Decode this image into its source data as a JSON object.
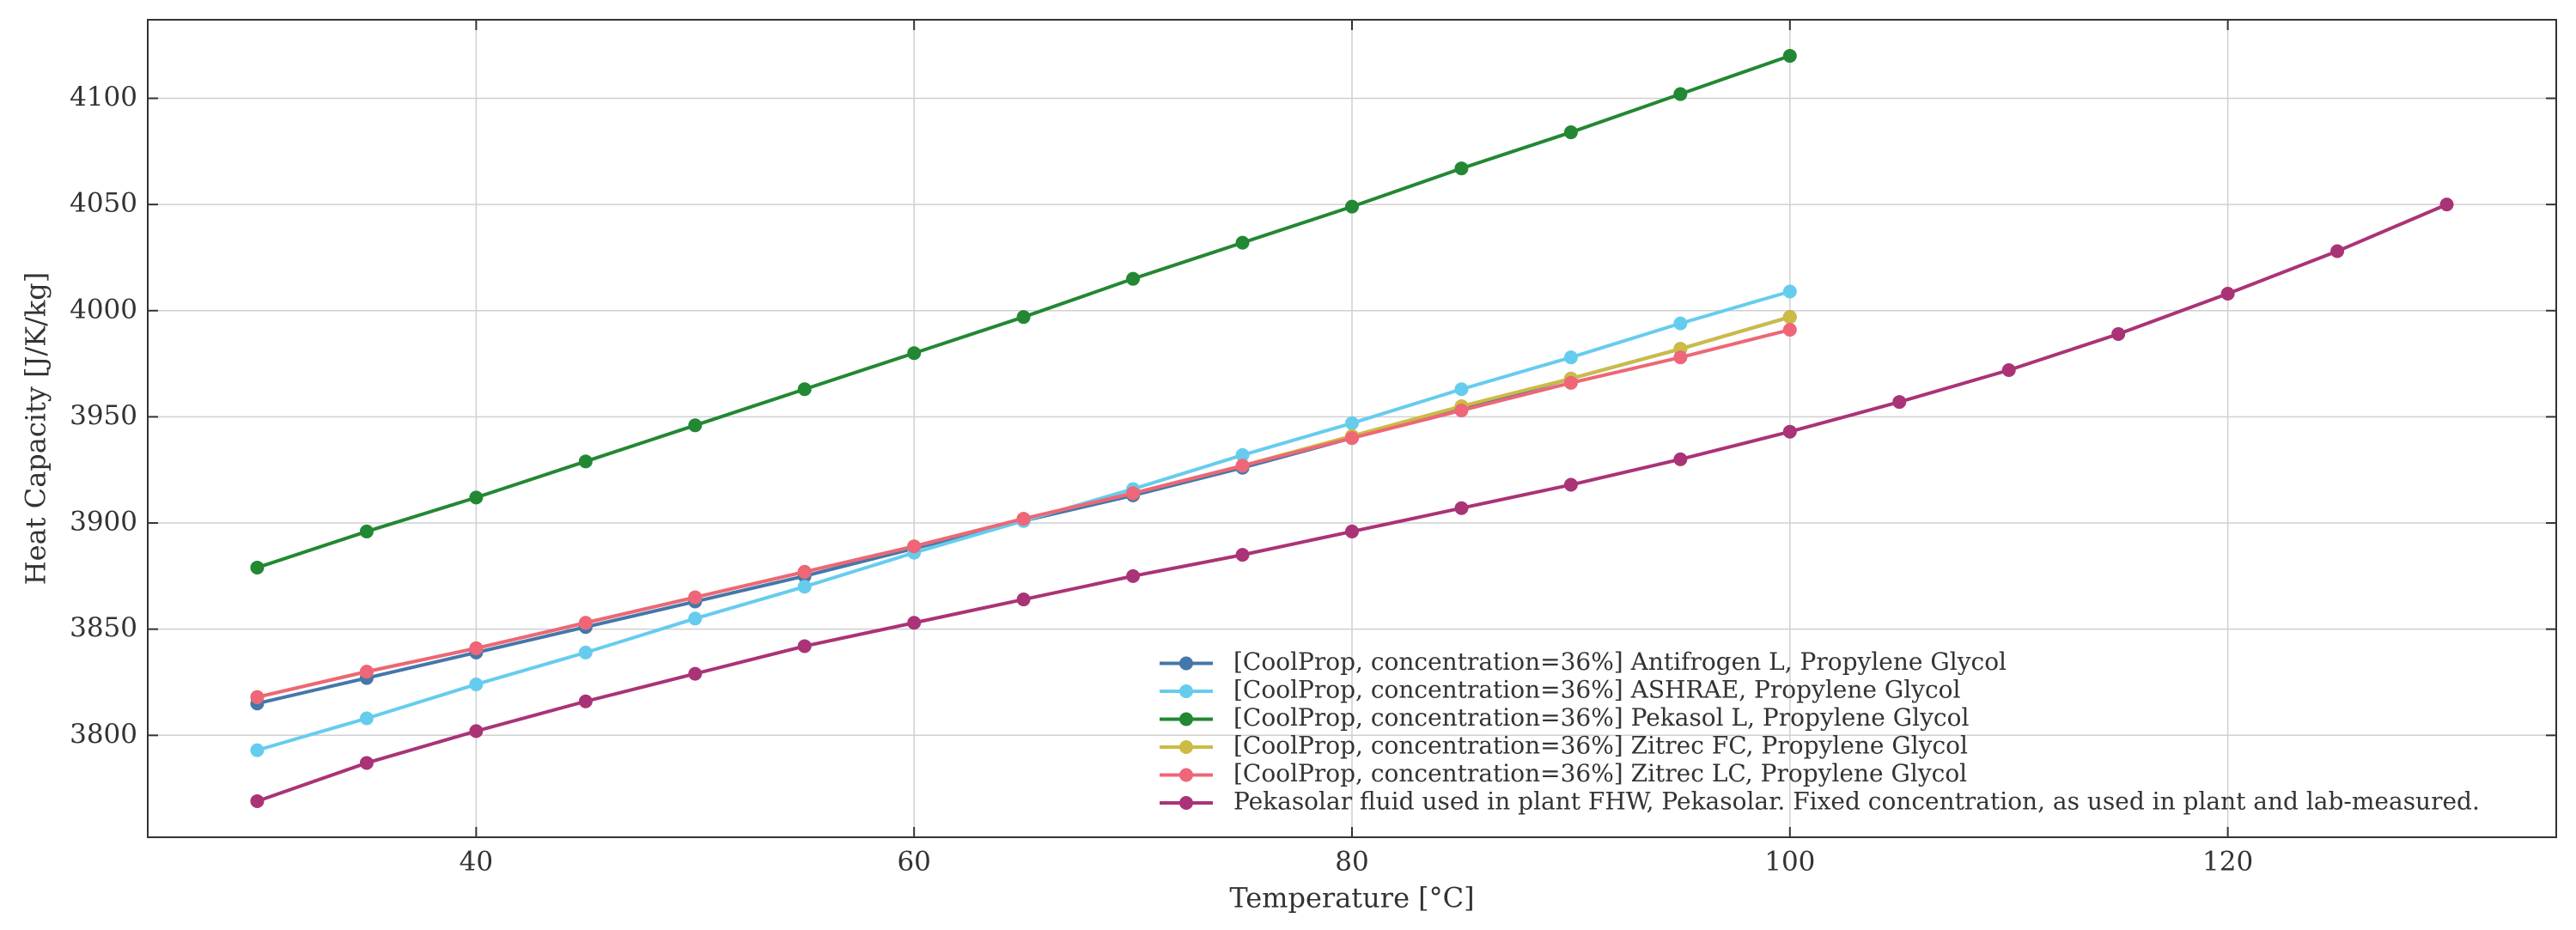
{
  "chart_data": {
    "type": "line",
    "x_label": "Temperature [°C]",
    "y_label": "Heat Capacity [J/K/kg]",
    "xlim": [
      25,
      135
    ],
    "xticks": [
      40,
      60,
      80,
      100,
      120
    ],
    "ylim": [
      3752,
      4137
    ],
    "yticks": [
      3800,
      3850,
      3900,
      3950,
      4000,
      4050,
      4100
    ],
    "grid": true,
    "legend": "lower right",
    "series": [
      {
        "name": "[CoolProp, concentration=36%] Antifrogen L, Propylene Glycol",
        "color": "#4477AA",
        "x": [
          30,
          35,
          40,
          45,
          50,
          55,
          60,
          65,
          70,
          75,
          80,
          85,
          90,
          95,
          100
        ],
        "values": [
          3815,
          3827,
          3839,
          3851,
          3863,
          3875,
          3888,
          3901,
          3913,
          3926,
          3940,
          3954,
          3968,
          3982,
          3997
        ]
      },
      {
        "name": "[CoolProp, concentration=36%] ASHRAE, Propylene Glycol",
        "color": "#66CCEE",
        "x": [
          30,
          35,
          40,
          45,
          50,
          55,
          60,
          65,
          70,
          75,
          80,
          85,
          90,
          95,
          100
        ],
        "values": [
          3793,
          3808,
          3824,
          3839,
          3855,
          3870,
          3886,
          3901,
          3916,
          3932,
          3947,
          3963,
          3978,
          3994,
          4009
        ]
      },
      {
        "name": "[CoolProp, concentration=36%] Pekasol L, Propylene Glycol",
        "color": "#228833",
        "x": [
          30,
          35,
          40,
          45,
          50,
          55,
          60,
          65,
          70,
          75,
          80,
          85,
          90,
          95,
          100
        ],
        "values": [
          3879,
          3896,
          3912,
          3929,
          3946,
          3963,
          3980,
          3997,
          4015,
          4032,
          4049,
          4067,
          4084,
          4102,
          4120
        ]
      },
      {
        "name": "[CoolProp, concentration=36%] Zitrec FC, Propylene Glycol",
        "color": "#CCBB44",
        "x": [
          30,
          35,
          40,
          45,
          50,
          55,
          60,
          65,
          70,
          75,
          80,
          85,
          90,
          95,
          100
        ],
        "values": [
          3818,
          3830,
          3841,
          3853,
          3865,
          3877,
          3889,
          3902,
          3914,
          3927,
          3941,
          3955,
          3968,
          3982,
          3997
        ]
      },
      {
        "name": "[CoolProp, concentration=36%] Zitrec LC, Propylene Glycol",
        "color": "#EE6677",
        "x": [
          30,
          35,
          40,
          45,
          50,
          55,
          60,
          65,
          70,
          75,
          80,
          85,
          90,
          95,
          100
        ],
        "values": [
          3818,
          3830,
          3841,
          3853,
          3865,
          3877,
          3889,
          3902,
          3914,
          3927,
          3940,
          3953,
          3966,
          3978,
          3991
        ]
      },
      {
        "name": "Pekasolar fluid used in plant FHW, Pekasolar. Fixed concentration, as used in plant and lab-measured.",
        "color": "#AA3377",
        "x": [
          30,
          35,
          40,
          45,
          50,
          55,
          60,
          65,
          70,
          75,
          80,
          85,
          90,
          95,
          100,
          105,
          110,
          115,
          120,
          125,
          130
        ],
        "values": [
          3769,
          3787,
          3802,
          3816,
          3829,
          3842,
          3853,
          3864,
          3875,
          3885,
          3896,
          3907,
          3918,
          3930,
          3943,
          3957,
          3972,
          3989,
          4008,
          4028,
          4050
        ]
      }
    ]
  }
}
